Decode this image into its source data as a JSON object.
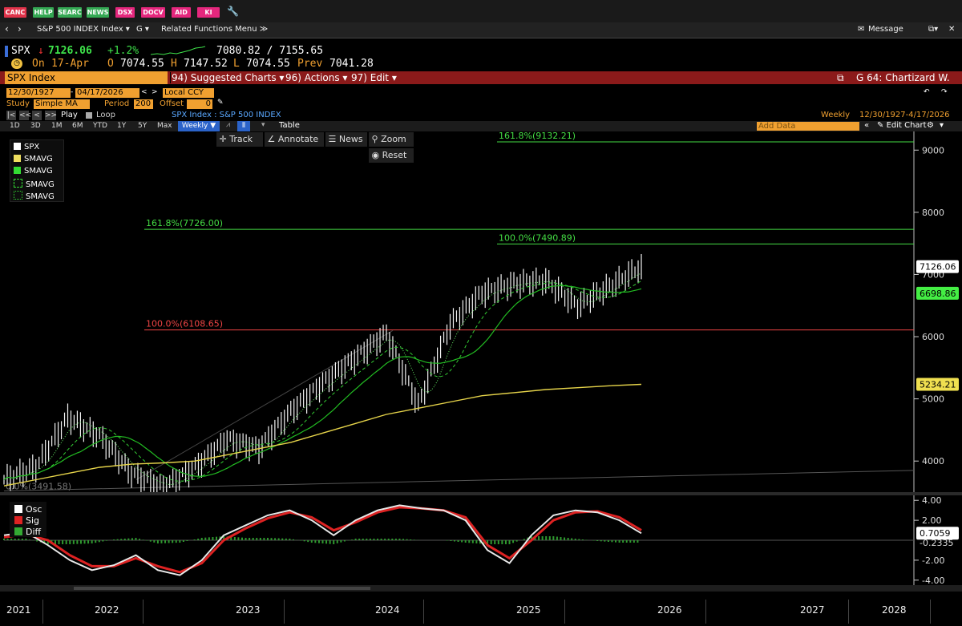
{
  "fkeys": [
    "CANC",
    "HELP",
    "SEARC",
    "NEWS",
    "DSX",
    "DOCV",
    "AID",
    "KI"
  ],
  "nav": {
    "ticker_menu": "S&P 500 INDEX Index ▾",
    "g_menu": "G ▾",
    "related": "Related Functions Menu ≫",
    "message": "Message"
  },
  "quote": {
    "ticker": "SPX",
    "arrow": "↓",
    "price": "7126.06",
    "change": "+1.2%",
    "range": "7080.82 / 7155.65",
    "on_label": "On",
    "date": "17-Apr",
    "o_label": "O",
    "open": "7074.55",
    "h_label": "H",
    "high": "7147.52",
    "l_label": "L",
    "low": "7074.55",
    "prev_label": "Prev",
    "prev": "7041.28"
  },
  "secbar": {
    "security": "SPX Index",
    "suggested": "94) Suggested Charts ▾",
    "actions": "96) Actions ▾",
    "edit": "97) Edit ▾",
    "chart_id": "G 64: Chartizard W."
  },
  "controls": {
    "start_date": "12/30/1927",
    "end_date": "04/17/2026",
    "currency": "Local CCY",
    "study_label": "Study",
    "study": "Simple MA",
    "period_label": "Period",
    "period": "200",
    "offset_label": "Offset",
    "offset": "0",
    "play": "Play",
    "loop": "Loop",
    "series_title": "SPX Index : S&P 500 INDEX",
    "frequency": "Weekly",
    "range_text": "12/30/1927-4/17/2026",
    "periods": [
      "1D",
      "3D",
      "1M",
      "6M",
      "YTD",
      "1Y",
      "5Y",
      "Max"
    ],
    "period_selected": "Weekly ▼",
    "table": "Table",
    "add_data": "Add Data",
    "edit_chart": "Edit Chart"
  },
  "tools": {
    "track": "Track",
    "annotate": "Annotate",
    "news": "News",
    "zoom": "Zoom",
    "reset": "Reset"
  },
  "legend": {
    "items": [
      {
        "label": "SPX",
        "color": "#ffffff",
        "style": "solid"
      },
      {
        "label": "SMAVG",
        "color": "#f0e060",
        "style": "solid"
      },
      {
        "label": "SMAVG",
        "color": "#33dd33",
        "style": "solid"
      },
      {
        "label": "SMAVG",
        "color": "#33dd33",
        "style": "dashed"
      },
      {
        "label": "SMAVG",
        "color": "#33dd33",
        "style": "dotted"
      }
    ]
  },
  "lower_legend": {
    "items": [
      {
        "label": "Osc",
        "color": "#ffffff"
      },
      {
        "label": "Sig",
        "color": "#dd2222"
      },
      {
        "label": "Diff",
        "color": "#33aa33"
      }
    ]
  },
  "chart_data": [
    {
      "type": "line",
      "ylim": [
        3500,
        9300
      ],
      "yticks": [
        "9000",
        "8000",
        "7000",
        "6000",
        "5000",
        "4000"
      ],
      "x_labels": [
        "2021",
        "2022",
        "2023",
        "2024",
        "2025",
        "2026",
        "2027",
        "2028"
      ],
      "fib_levels": [
        {
          "label": "161.8%(9132.21)",
          "value": 9132.21,
          "color": "#44dd44"
        },
        {
          "label": "161.8%(7726.00)",
          "value": 7726.0,
          "color": "#44dd44"
        },
        {
          "label": "100.0%(7490.89)",
          "value": 7490.89,
          "color": "#44dd44"
        },
        {
          "label": "100.0%(6108.65)",
          "value": 6108.65,
          "color": "#ee4444"
        },
        {
          "label": "0.0%(3491.58)",
          "value": 3491.58,
          "color": "#777777"
        }
      ],
      "price_labels": [
        {
          "text": "7126.06",
          "value": 7126.06,
          "bg": "#ffffff",
          "fg": "#000000"
        },
        {
          "text": "6698.86",
          "value": 6698.86,
          "bg": "#44ee44",
          "fg": "#000000"
        },
        {
          "text": "5234.21",
          "value": 5234.21,
          "bg": "#f0e050",
          "fg": "#000000"
        }
      ],
      "series": [
        {
          "name": "SPX",
          "t": [
            0.0,
            0.05,
            0.1,
            0.15,
            0.2,
            0.25,
            0.3,
            0.35,
            0.4,
            0.45,
            0.5,
            0.55,
            0.6,
            0.65,
            0.7,
            0.75,
            0.8,
            0.85,
            0.9,
            0.95,
            1.0
          ],
          "x": [
            "2021-01",
            "2021-06",
            "2021-12",
            "2022-03",
            "2022-06",
            "2022-10",
            "2023-01",
            "2023-06",
            "2023-10",
            "2024-01",
            "2024-05",
            "2024-09",
            "2024-12",
            "2025-04",
            "2025-07",
            "2025-10",
            "2025-12",
            "2026-02",
            "2026-03",
            "2026-04",
            "2026-04"
          ],
          "values": [
            3700,
            3900,
            4700,
            4400,
            3800,
            3580,
            3900,
            4350,
            4200,
            4800,
            5250,
            5650,
            6050,
            4900,
            6200,
            6700,
            6850,
            6900,
            6500,
            6800,
            7126
          ]
        },
        {
          "name": "SMAVG",
          "values": [
            3600,
            3700,
            3800,
            3900,
            3950,
            3970,
            4000,
            4100,
            4200,
            4300,
            4450,
            4600,
            4750,
            4850,
            4950,
            5050,
            5100,
            5150,
            5180,
            5210,
            5234
          ]
        }
      ]
    },
    {
      "type": "line",
      "ylim": [
        -4.5,
        4.5
      ],
      "yticks": [
        "4.00",
        "2.00",
        "-2.00",
        "-4.00"
      ],
      "value_labels": [
        {
          "text": "0.7059",
          "value": 0.7059
        },
        {
          "text": "-0.2335",
          "value": -0.2335
        }
      ],
      "series": [
        {
          "name": "Osc",
          "values": [
            0.5,
            0.8,
            -0.5,
            -2.0,
            -3.0,
            -2.5,
            -1.5,
            -3.0,
            -3.5,
            -2.0,
            0.5,
            1.5,
            2.5,
            3.0,
            2.0,
            0.5,
            2.0,
            3.0,
            3.5,
            3.2,
            3.0,
            2.0,
            -1.0,
            -2.3,
            0.5,
            2.5,
            3.0,
            2.8,
            2.0,
            0.7
          ]
        },
        {
          "name": "Sig",
          "values": [
            0.3,
            0.6,
            0.0,
            -1.5,
            -2.6,
            -2.6,
            -1.8,
            -2.6,
            -3.2,
            -2.3,
            0.0,
            1.2,
            2.2,
            2.8,
            2.3,
            1.0,
            1.8,
            2.8,
            3.3,
            3.2,
            3.0,
            2.3,
            -0.5,
            -1.8,
            0.0,
            2.0,
            2.8,
            2.9,
            2.3,
            1.0
          ]
        }
      ]
    }
  ]
}
